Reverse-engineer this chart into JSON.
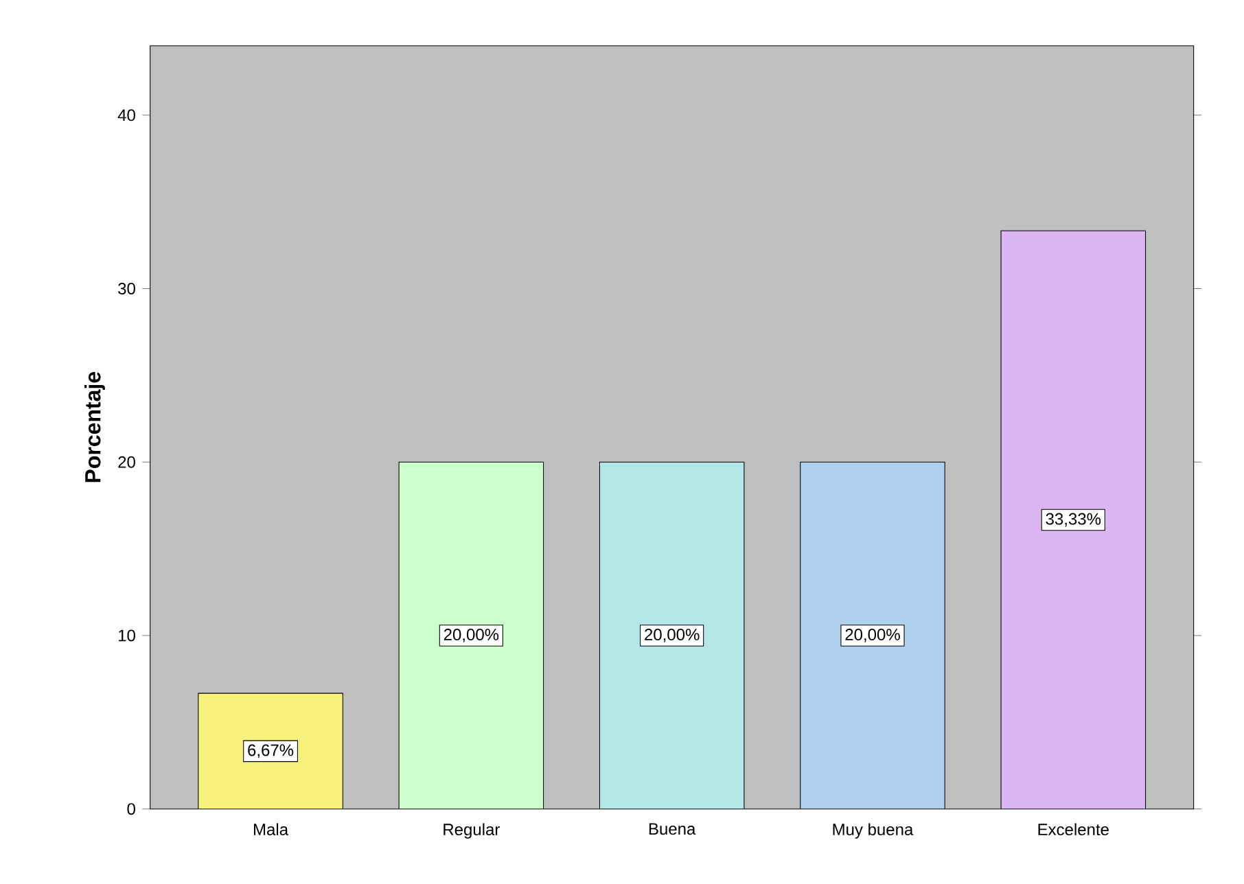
{
  "chart_data": {
    "type": "bar",
    "ylabel": "Porcentaje",
    "categories": [
      "Mala",
      "Regular",
      "Buena",
      "Muy buena",
      "Excelente"
    ],
    "values": [
      6.67,
      20.0,
      20.0,
      20.0,
      33.33
    ],
    "colors": [
      "#f7f27c",
      "#ccffcc",
      "#b3e6e6",
      "#afd0ef",
      "#dcb6f2"
    ],
    "value_labels": [
      "6,67%",
      "20,00%",
      "20,00%",
      "20,00%",
      "33,33%"
    ],
    "ylim": [
      0,
      44
    ],
    "yticks": [
      0,
      10,
      20,
      30,
      40
    ]
  }
}
